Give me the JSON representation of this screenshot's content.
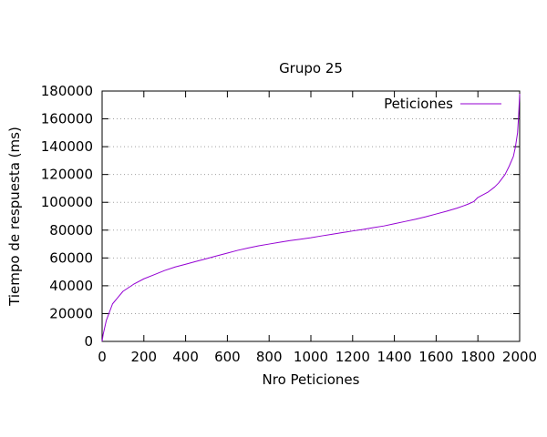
{
  "chart_data": {
    "type": "line",
    "title": "Grupo 25",
    "xlabel": "Nro Peticiones",
    "ylabel": "Tiempo de respuesta (ms)",
    "xlim": [
      0,
      2000
    ],
    "ylim": [
      0,
      180000
    ],
    "xticks": [
      0,
      200,
      400,
      600,
      800,
      1000,
      1200,
      1400,
      1600,
      1800,
      2000
    ],
    "yticks": [
      0,
      20000,
      40000,
      60000,
      80000,
      100000,
      120000,
      140000,
      160000,
      180000
    ],
    "grid": "horizontal dotted",
    "legend_position": "top-right",
    "series": [
      {
        "name": "Peticiones",
        "color": "#9400d3",
        "x": [
          0,
          5,
          20,
          50,
          100,
          150,
          200,
          250,
          300,
          350,
          400,
          450,
          500,
          550,
          600,
          650,
          700,
          750,
          800,
          850,
          900,
          950,
          1000,
          1050,
          1100,
          1150,
          1200,
          1250,
          1300,
          1350,
          1400,
          1450,
          1500,
          1550,
          1600,
          1650,
          1700,
          1750,
          1780,
          1800,
          1850,
          1880,
          1900,
          1930,
          1950,
          1970,
          1980,
          1990,
          1995,
          2000
        ],
        "y": [
          0,
          5000,
          15000,
          27000,
          36000,
          41000,
          45000,
          48000,
          51000,
          53500,
          55500,
          57500,
          59500,
          61500,
          63500,
          65500,
          67200,
          68700,
          70000,
          71300,
          72500,
          73500,
          74500,
          75800,
          77000,
          78200,
          79400,
          80500,
          81800,
          83000,
          84600,
          86200,
          87800,
          89600,
          91600,
          93600,
          95800,
          98500,
          100500,
          103500,
          107500,
          111000,
          114000,
          120000,
          126000,
          133000,
          140000,
          150000,
          162000,
          178000
        ]
      }
    ]
  }
}
